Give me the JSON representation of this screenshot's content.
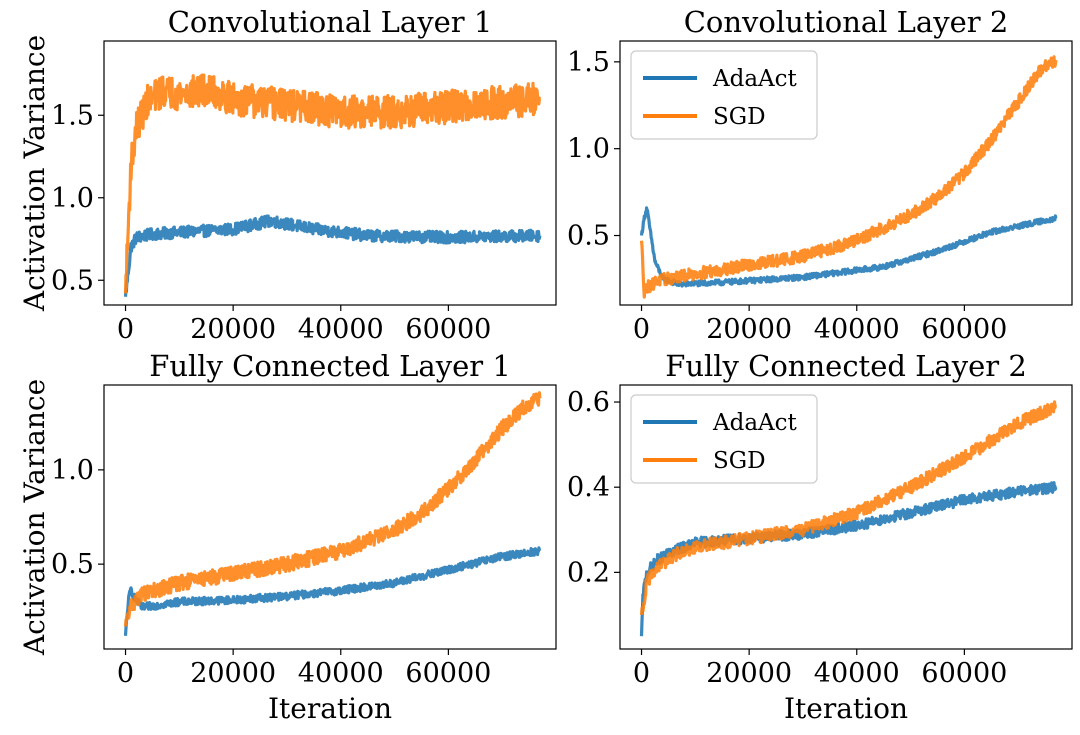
{
  "colors": {
    "adaact": "#1f77b4",
    "sgd": "#ff7f0e"
  },
  "series_names": [
    "AdaAct",
    "SGD"
  ],
  "chart_data": [
    {
      "type": "line",
      "title": "Convolutional Layer 1",
      "xlabel": "",
      "ylabel": "Activation Variance",
      "xlim": [
        -4000,
        80000
      ],
      "ylim": [
        0.35,
        1.95
      ],
      "xticks": [
        0,
        20000,
        40000,
        60000
      ],
      "xtick_labels": [
        "0",
        "20000",
        "40000",
        "60000"
      ],
      "yticks": [
        0.5,
        1.0,
        1.5
      ],
      "ytick_labels": [
        "0.5",
        "1.0",
        "1.5"
      ],
      "legend": false,
      "series": [
        {
          "name": "AdaAct",
          "color": "#1f77b4",
          "noise": 0.035,
          "x": [
            0,
            1000,
            2000,
            5000,
            10000,
            20000,
            27000,
            35000,
            45000,
            60000,
            77000
          ],
          "values": [
            0.4,
            0.7,
            0.76,
            0.78,
            0.79,
            0.81,
            0.86,
            0.81,
            0.77,
            0.76,
            0.77
          ]
        },
        {
          "name": "SGD",
          "color": "#ff7f0e",
          "noise": 0.1,
          "x": [
            0,
            1000,
            2000,
            4000,
            7000,
            10000,
            15000,
            20000,
            30000,
            40000,
            50000,
            60000,
            70000,
            77000
          ],
          "values": [
            0.42,
            1.2,
            1.42,
            1.58,
            1.65,
            1.63,
            1.65,
            1.6,
            1.56,
            1.52,
            1.52,
            1.55,
            1.58,
            1.6
          ]
        }
      ]
    },
    {
      "type": "line",
      "title": "Convolutional Layer 2",
      "xlabel": "",
      "ylabel": "",
      "xlim": [
        -4000,
        80000
      ],
      "ylim": [
        0.1,
        1.62
      ],
      "xticks": [
        0,
        20000,
        40000,
        60000
      ],
      "xtick_labels": [
        "0",
        "20000",
        "40000",
        "60000"
      ],
      "yticks": [
        0.5,
        1.0,
        1.5
      ],
      "ytick_labels": [
        "0.5",
        "1.0",
        "1.5"
      ],
      "legend": true,
      "series": [
        {
          "name": "AdaAct",
          "color": "#1f77b4",
          "noise": 0.015,
          "x": [
            0,
            500,
            1000,
            1500,
            2500,
            4000,
            7000,
            15000,
            30000,
            45000,
            55000,
            65000,
            77000
          ],
          "values": [
            0.5,
            0.6,
            0.66,
            0.55,
            0.35,
            0.25,
            0.22,
            0.23,
            0.26,
            0.32,
            0.41,
            0.52,
            0.6
          ]
        },
        {
          "name": "SGD",
          "color": "#ff7f0e",
          "noise": 0.035,
          "x": [
            0,
            500,
            1000,
            3000,
            10000,
            20000,
            30000,
            40000,
            50000,
            55000,
            60000,
            65000,
            70000,
            74000,
            77000
          ],
          "values": [
            0.47,
            0.18,
            0.2,
            0.24,
            0.28,
            0.33,
            0.38,
            0.47,
            0.62,
            0.72,
            0.86,
            1.05,
            1.27,
            1.45,
            1.51
          ]
        }
      ]
    },
    {
      "type": "line",
      "title": "Fully Connected Layer 1",
      "xlabel": "Iteration",
      "ylabel": "Activation Variance",
      "xlim": [
        -4000,
        80000
      ],
      "ylim": [
        0.05,
        1.45
      ],
      "xticks": [
        0,
        20000,
        40000,
        60000
      ],
      "xtick_labels": [
        "0",
        "20000",
        "40000",
        "60000"
      ],
      "yticks": [
        0.5,
        1.0
      ],
      "ytick_labels": [
        "0.5",
        "1.0"
      ],
      "legend": false,
      "series": [
        {
          "name": "AdaAct",
          "color": "#1f77b4",
          "noise": 0.02,
          "x": [
            0,
            500,
            1000,
            1500,
            3000,
            10000,
            20000,
            30000,
            40000,
            50000,
            60000,
            70000,
            77000
          ],
          "values": [
            0.12,
            0.3,
            0.37,
            0.33,
            0.27,
            0.3,
            0.31,
            0.33,
            0.36,
            0.4,
            0.47,
            0.54,
            0.57
          ]
        },
        {
          "name": "SGD",
          "color": "#ff7f0e",
          "noise": 0.04,
          "x": [
            0,
            1000,
            3000,
            10000,
            20000,
            30000,
            40000,
            50000,
            55000,
            60000,
            65000,
            70000,
            74000,
            77000
          ],
          "values": [
            0.17,
            0.28,
            0.34,
            0.4,
            0.45,
            0.5,
            0.57,
            0.68,
            0.77,
            0.9,
            1.05,
            1.22,
            1.33,
            1.38
          ]
        }
      ]
    },
    {
      "type": "line",
      "title": "Fully Connected Layer 2",
      "xlabel": "Iteration",
      "ylabel": "",
      "xlim": [
        -4000,
        80000
      ],
      "ylim": [
        0.02,
        0.64
      ],
      "xticks": [
        0,
        20000,
        40000,
        60000
      ],
      "xtick_labels": [
        "0",
        "20000",
        "40000",
        "60000"
      ],
      "yticks": [
        0.2,
        0.4,
        0.6
      ],
      "ytick_labels": [
        "0.2",
        "0.4",
        "0.6"
      ],
      "legend": true,
      "series": [
        {
          "name": "AdaAct",
          "color": "#1f77b4",
          "noise": 0.012,
          "x": [
            0,
            300,
            1000,
            3000,
            6000,
            10000,
            20000,
            30000,
            40000,
            50000,
            60000,
            70000,
            77000
          ],
          "values": [
            0.05,
            0.15,
            0.2,
            0.23,
            0.25,
            0.27,
            0.28,
            0.29,
            0.31,
            0.34,
            0.37,
            0.39,
            0.4
          ]
        },
        {
          "name": "SGD",
          "color": "#ff7f0e",
          "noise": 0.015,
          "x": [
            0,
            300,
            1000,
            3000,
            6000,
            10000,
            20000,
            30000,
            40000,
            50000,
            60000,
            70000,
            77000
          ],
          "values": [
            0.1,
            0.12,
            0.18,
            0.21,
            0.24,
            0.26,
            0.28,
            0.3,
            0.34,
            0.4,
            0.47,
            0.55,
            0.59
          ]
        }
      ]
    }
  ]
}
